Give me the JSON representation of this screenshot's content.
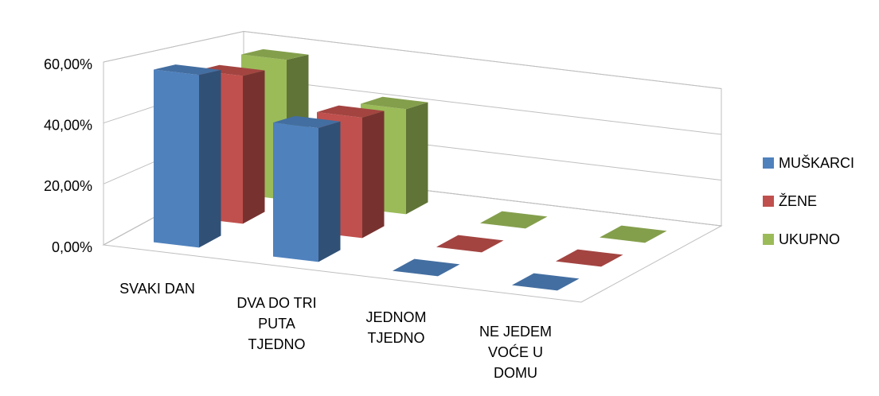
{
  "chart_data": {
    "type": "bar3d",
    "categories": [
      "SVAKI DAN",
      "DVA DO TRI PUTA TJEDNO",
      "JEDNOM TJEDNO",
      "NE JEDEM VOĆE U DOMU"
    ],
    "series": [
      {
        "name": "MUŠKARCI",
        "color": "#4f81bd",
        "values": [
          58,
          45,
          0,
          0
        ]
      },
      {
        "name": "ŽENE",
        "color": "#c0504d",
        "values": [
          54,
          44,
          0,
          0
        ]
      },
      {
        "name": "UKUPNO",
        "color": "#9bbb59",
        "values": [
          56,
          42,
          0,
          0
        ]
      }
    ],
    "ylim": [
      0,
      60
    ],
    "yticks": [
      {
        "value": 0,
        "label": "0,00%"
      },
      {
        "value": 20,
        "label": "20,00%"
      },
      {
        "value": 40,
        "label": "40,00%"
      },
      {
        "value": 60,
        "label": "60,00%"
      }
    ],
    "grid": true,
    "legend": "right"
  }
}
